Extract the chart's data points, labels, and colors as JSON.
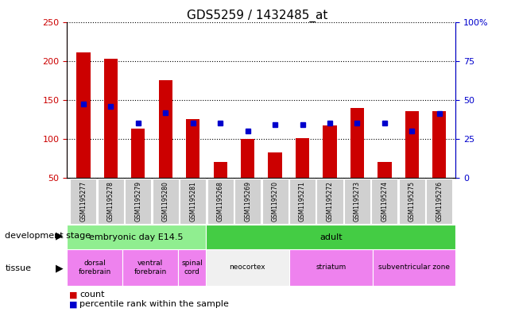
{
  "title": "GDS5259 / 1432485_at",
  "samples": [
    "GSM1195277",
    "GSM1195278",
    "GSM1195279",
    "GSM1195280",
    "GSM1195281",
    "GSM1195268",
    "GSM1195269",
    "GSM1195270",
    "GSM1195271",
    "GSM1195272",
    "GSM1195273",
    "GSM1195274",
    "GSM1195275",
    "GSM1195276"
  ],
  "bar_values": [
    211,
    203,
    113,
    175,
    125,
    70,
    100,
    83,
    101,
    117,
    140,
    70,
    135,
    135
  ],
  "pct_positions": [
    145,
    142,
    120,
    133,
    120,
    120,
    110,
    118,
    118,
    120,
    120,
    120,
    110,
    132
  ],
  "bar_color": "#cc0000",
  "percentile_color": "#0000cc",
  "ylim_left": [
    50,
    250
  ],
  "ylim_right": [
    0,
    100
  ],
  "yticks_left": [
    50,
    100,
    150,
    200,
    250
  ],
  "yticks_right": [
    0,
    25,
    50,
    75,
    100
  ],
  "bar_bottom": 50,
  "dev_stage_groups": [
    {
      "label": "embryonic day E14.5",
      "start": 0,
      "end": 5,
      "color": "#90ee90"
    },
    {
      "label": "adult",
      "start": 5,
      "end": 14,
      "color": "#44cc44"
    }
  ],
  "tissue_groups": [
    {
      "label": "dorsal\nforebrain",
      "start": 0,
      "end": 2,
      "color": "#ee82ee"
    },
    {
      "label": "ventral\nforebrain",
      "start": 2,
      "end": 4,
      "color": "#ee82ee"
    },
    {
      "label": "spinal\ncord",
      "start": 4,
      "end": 5,
      "color": "#ee82ee"
    },
    {
      "label": "neocortex",
      "start": 5,
      "end": 8,
      "color": "#f0f0f0"
    },
    {
      "label": "striatum",
      "start": 8,
      "end": 11,
      "color": "#ee82ee"
    },
    {
      "label": "subventricular zone",
      "start": 11,
      "end": 14,
      "color": "#ee82ee"
    }
  ],
  "legend_count_label": "count",
  "legend_percentile_label": "percentile rank within the sample",
  "dev_stage_label": "development stage",
  "tissue_label": "tissue"
}
